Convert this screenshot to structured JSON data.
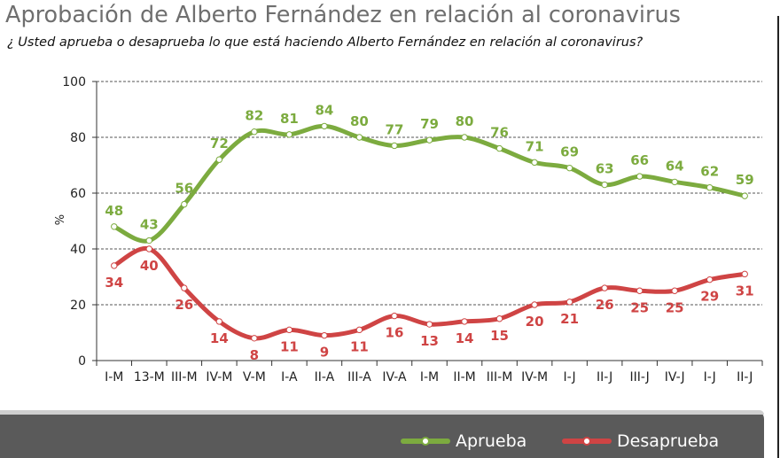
{
  "header": {
    "title": "Aprobación de Alberto Fernández en relación al coronavirus",
    "subtitle": "¿ Usted aprueba o desaprueba lo que está haciendo Alberto Fernández en relación al coronavirus?"
  },
  "legend": {
    "approve_label": "Aprueba",
    "disapprove_label": "Desaprueba"
  },
  "colors": {
    "approve": "#7cab3f",
    "disapprove": "#cf4444",
    "axis": "#333333",
    "grid": "#555555"
  },
  "chart_data": {
    "type": "line",
    "categories": [
      "I-M",
      "13-M",
      "III-M",
      "IV-M",
      "V-M",
      "I-A",
      "II-A",
      "III-A",
      "IV-A",
      "I-M",
      "II-M",
      "III-M",
      "IV-M",
      "I-J",
      "II-J",
      "III-J",
      "IV-J",
      "I-J",
      "II-J"
    ],
    "series": [
      {
        "name": "Aprueba",
        "values": [
          48,
          43,
          56,
          72,
          82,
          81,
          84,
          80,
          77,
          79,
          80,
          76,
          71,
          69,
          63,
          66,
          64,
          62,
          59
        ]
      },
      {
        "name": "Desaprueba",
        "values": [
          34,
          40,
          26,
          14,
          8,
          11,
          9,
          11,
          16,
          13,
          14,
          15,
          20,
          21,
          26,
          25,
          25,
          29,
          31
        ]
      }
    ],
    "ylabel": "%",
    "ylim": [
      0,
      100
    ],
    "yticks": [
      0,
      20,
      40,
      60,
      80,
      100
    ],
    "grid": true,
    "legend_position": "bottom-right"
  }
}
